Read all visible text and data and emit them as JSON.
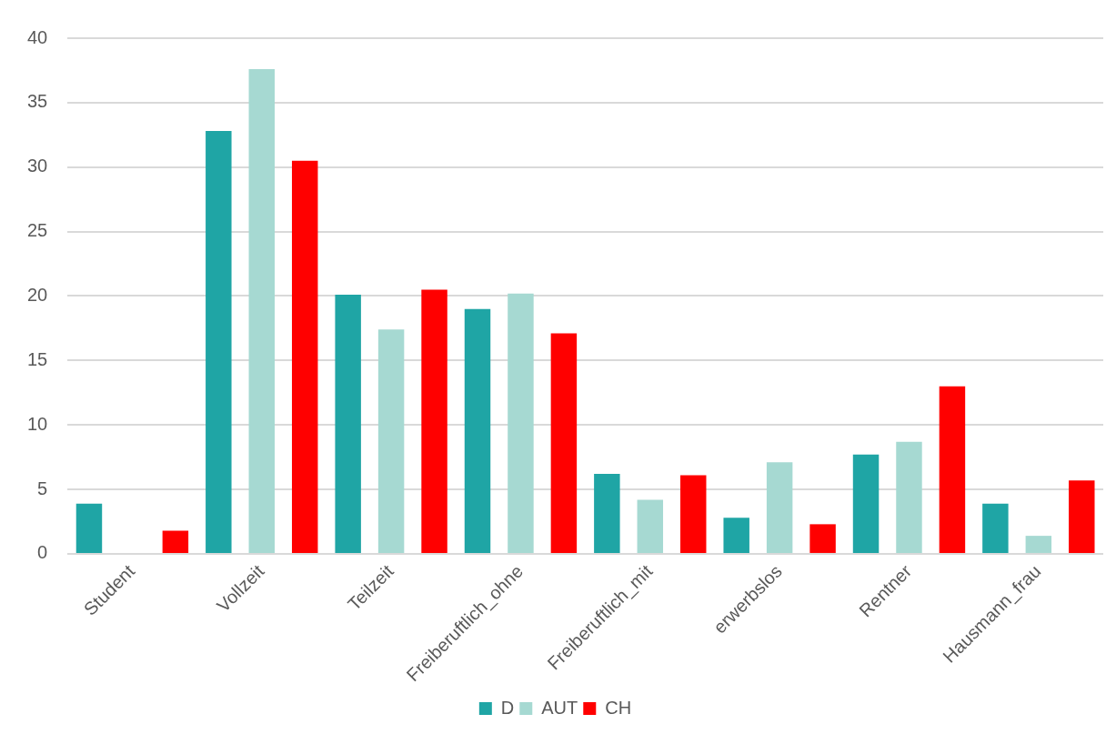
{
  "chart_data": {
    "type": "bar",
    "categories": [
      "Student",
      "Vollzeit",
      "Teilzeit",
      "Freiberuftlich_ohne",
      "Freiberuftlich_mit",
      "erwerbslos",
      "Rentner",
      "Hausmann_frau"
    ],
    "series": [
      {
        "name": "D",
        "color": "#1fa5a5",
        "values": [
          3.9,
          32.8,
          20.1,
          19.0,
          6.2,
          2.8,
          7.7,
          3.9
        ]
      },
      {
        "name": "AUT",
        "color": "#a6d9d2",
        "values": [
          null,
          37.6,
          17.4,
          20.2,
          4.2,
          7.1,
          8.7,
          1.4
        ]
      },
      {
        "name": "CH",
        "color": "#ff0000",
        "values": [
          1.8,
          30.5,
          20.5,
          17.1,
          6.1,
          2.3,
          13.0,
          5.7
        ]
      }
    ],
    "ylim": [
      0,
      40
    ],
    "yticks": [
      0,
      5,
      10,
      15,
      20,
      25,
      30,
      35,
      40
    ],
    "grid": "y",
    "legend": "bottom"
  }
}
